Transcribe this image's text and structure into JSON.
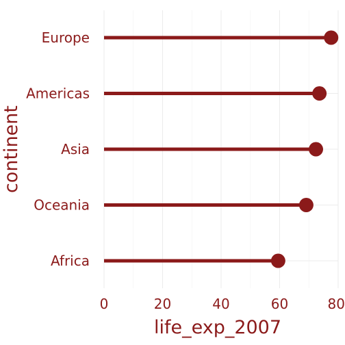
{
  "chart_data": {
    "type": "lollipop",
    "title": "",
    "xlabel": "life_exp_2007",
    "ylabel": "continent",
    "categories": [
      "Europe",
      "Americas",
      "Asia",
      "Oceania",
      "Africa"
    ],
    "values": [
      77.6,
      73.6,
      72.4,
      69.1,
      59.5
    ],
    "xlim": [
      0,
      80
    ],
    "xticks": [
      "0",
      "20",
      "40",
      "60",
      "80"
    ],
    "grid": true,
    "color": "#8b1a1a"
  }
}
